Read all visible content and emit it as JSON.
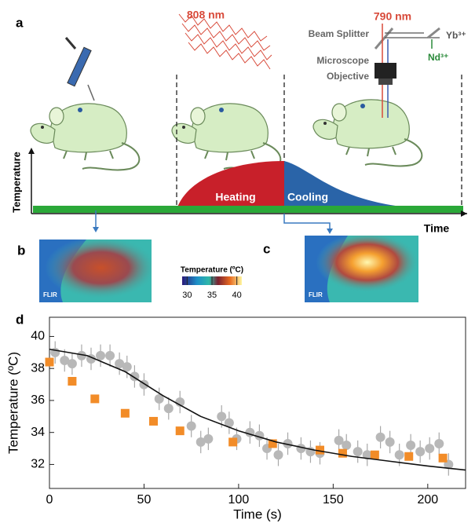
{
  "panel_a": {
    "label": "a",
    "laser_1": "808 nm",
    "laser_2": "790 nm",
    "beam_splitter": "Beam Splitter",
    "objective_line1": "Microscope",
    "objective_line2": "Objective",
    "ion_1": "Yb³⁺",
    "ion_2": "Nd³⁺",
    "y_label": "Temperature",
    "x_label": "Time",
    "phase_1": "Heating",
    "phase_2": "Cooling"
  },
  "panel_b": {
    "label": "b",
    "brand": "FLIR"
  },
  "panel_c": {
    "label": "c",
    "brand": "FLIR"
  },
  "colorbar": {
    "title": "Temperature (ºC)",
    "ticks": [
      30,
      35,
      40
    ],
    "range": [
      29,
      41
    ]
  },
  "chart_data": {
    "type": "scatter",
    "panel_label": "d",
    "x_label": "Time (s)",
    "y_label": "Temperature (ºC)",
    "xlim": [
      0,
      220
    ],
    "ylim": [
      30.5,
      41.2
    ],
    "xticks": [
      0,
      50,
      100,
      150,
      200
    ],
    "yticks": [
      32,
      34,
      36,
      38,
      40
    ],
    "series": [
      {
        "color": "#b8b8b8",
        "marker": "circle",
        "x": [
          3,
          8,
          12,
          17,
          22,
          27,
          32,
          37,
          41,
          45,
          50,
          58,
          63,
          69,
          75,
          80,
          84,
          91,
          95,
          99,
          106,
          111,
          115,
          121,
          126,
          133,
          138,
          143,
          153,
          157,
          163,
          168,
          175,
          180,
          185,
          191,
          196,
          201,
          206,
          211
        ],
        "values": [
          39.0,
          38.5,
          38.3,
          38.8,
          38.6,
          38.8,
          38.8,
          38.3,
          38.1,
          37.5,
          37.0,
          36.1,
          35.5,
          35.9,
          34.4,
          33.4,
          33.6,
          35.0,
          34.6,
          33.6,
          34.0,
          33.8,
          33.0,
          32.6,
          33.3,
          33.0,
          32.8,
          32.7,
          33.5,
          33.2,
          32.8,
          32.6,
          33.7,
          33.4,
          32.6,
          33.2,
          32.8,
          33.0,
          33.3,
          32.0
        ],
        "errors": [
          0.7,
          0.7,
          0.7,
          0.7,
          0.7,
          0.7,
          0.7,
          0.7,
          0.7,
          0.7,
          0.7,
          0.7,
          0.7,
          0.7,
          0.7,
          0.7,
          0.7,
          0.7,
          0.7,
          0.7,
          0.7,
          0.7,
          0.7,
          0.7,
          0.7,
          0.7,
          0.7,
          0.7,
          0.7,
          0.7,
          0.7,
          0.7,
          0.7,
          0.7,
          0.7,
          0.7,
          0.7,
          0.7,
          0.7,
          0.7
        ]
      },
      {
        "color": "#f28c28",
        "marker": "square",
        "x": [
          0,
          12,
          24,
          40,
          55,
          69,
          97,
          118,
          143,
          155,
          172,
          190,
          208
        ],
        "values": [
          38.4,
          37.2,
          36.1,
          35.2,
          34.7,
          34.1,
          33.4,
          33.3,
          32.9,
          32.7,
          32.6,
          32.5,
          32.4
        ]
      },
      {
        "color": "#111111",
        "marker": "line",
        "x": [
          0,
          20,
          40,
          60,
          80,
          100,
          120,
          140,
          160,
          180,
          200,
          220
        ],
        "values": [
          39.2,
          38.8,
          37.8,
          36.3,
          35.0,
          34.1,
          33.4,
          32.9,
          32.5,
          32.2,
          31.9,
          31.65
        ]
      }
    ]
  }
}
